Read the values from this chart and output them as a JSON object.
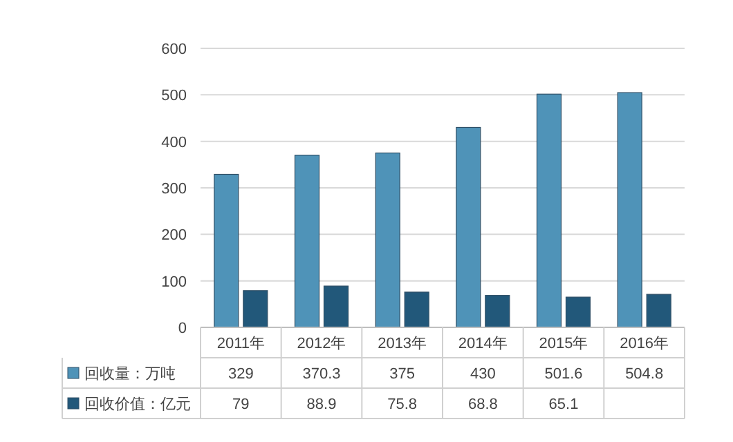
{
  "chart_data": {
    "type": "bar",
    "categories": [
      "2011年",
      "2012年",
      "2013年",
      "2014年",
      "2015年",
      "2016年"
    ],
    "series": [
      {
        "name": "回收量：万吨",
        "color": "#4f93b8",
        "values": [
          329,
          370.3,
          375,
          430,
          501.6,
          504.8
        ],
        "value_labels": [
          "329",
          "370.3",
          "375",
          "430",
          "501.6",
          "504.8"
        ]
      },
      {
        "name": "回收价值：亿元",
        "color": "#22587a",
        "values": [
          79,
          88.9,
          75.8,
          68.8,
          65.1,
          71
        ],
        "value_labels": [
          "79",
          "88.9",
          "75.8",
          "68.8",
          "65.1",
          null
        ]
      }
    ],
    "ylim": [
      0,
      600
    ],
    "yticks": [
      0,
      100,
      200,
      300,
      400,
      500,
      600
    ],
    "grid": "y",
    "legend": "bottom"
  }
}
